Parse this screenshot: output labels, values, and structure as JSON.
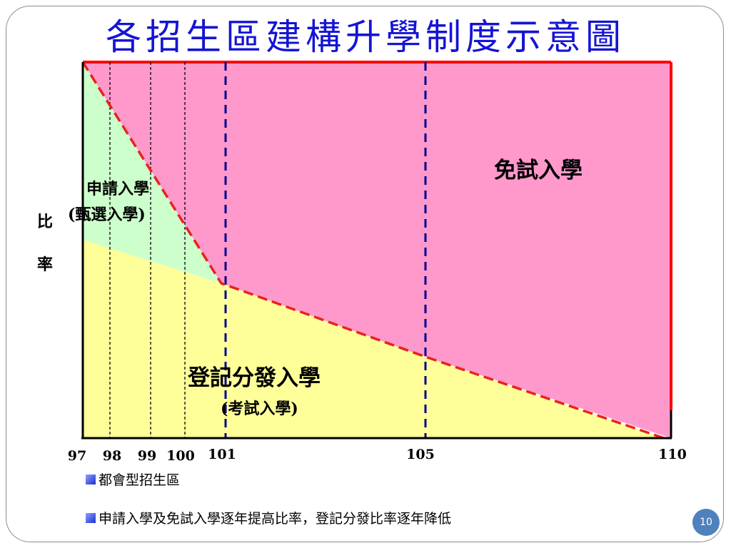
{
  "slide": {
    "title": "各招生區建構升學制度示意圖",
    "page_number": "10"
  },
  "diagram": {
    "y_axis_label_top": "比",
    "y_axis_label_bottom": "率",
    "x_ticks": [
      "97",
      "98",
      "99",
      "100",
      "101",
      "105",
      "110"
    ],
    "regions": {
      "exam_free": "免試入學",
      "application_line1": "申請入學",
      "application_line2": "(甄選入學)",
      "registration_line1": "登記分發入學",
      "registration_line2": "(考試入學)"
    },
    "colors": {
      "exam_free": "#ff99cc",
      "application": "#ccffcc",
      "registration": "#ffff99",
      "boundary_red": "#ff0000",
      "guide_blue": "#00008b"
    }
  },
  "legend": {
    "item1": "都會型招生區",
    "item2": "申請入學及免試入學逐年提高比率，登記分發比率逐年降低"
  }
}
